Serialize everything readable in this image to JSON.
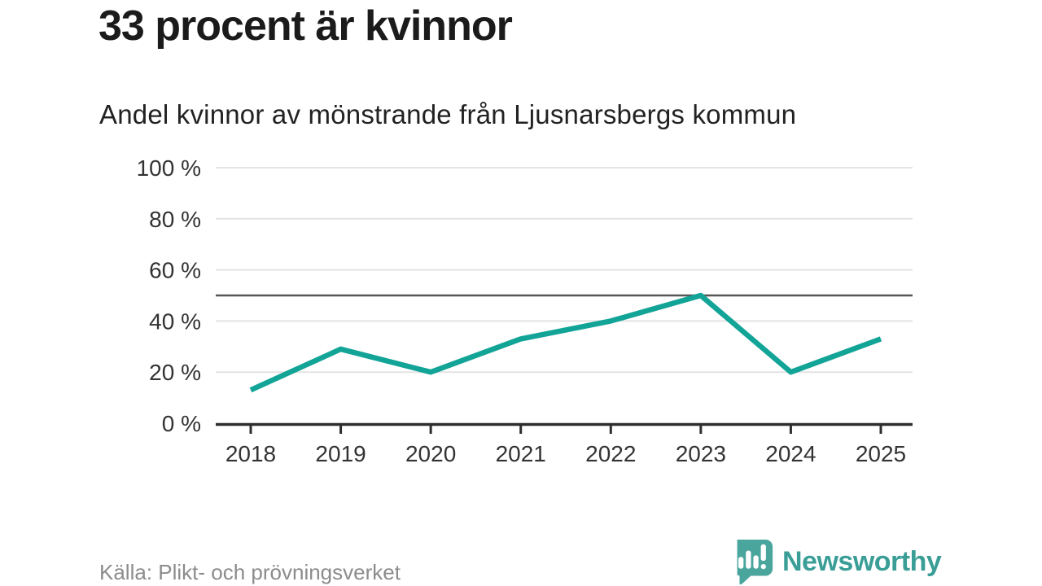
{
  "chart_data": {
    "type": "line",
    "title": "33 procent är kvinnor",
    "subtitle": "Andel kvinnor av mönstrande från Ljusnarsbergs kommun",
    "source": "Källa: Plikt- och prövningsverket",
    "x": [
      2018,
      2019,
      2020,
      2021,
      2022,
      2023,
      2024,
      2025
    ],
    "series": [
      {
        "name": "Andel kvinnor av mönstrande",
        "values": [
          13,
          29,
          20,
          33,
          40,
          50,
          20,
          33
        ]
      }
    ],
    "unit": "%",
    "ylim": [
      0,
      100
    ],
    "yticks": [
      0,
      20,
      40,
      60,
      80,
      100
    ],
    "ytick_suffix": " %",
    "reference_line": 50,
    "grid": true,
    "legend": false
  },
  "branding": {
    "wordmark": "Newsworthy",
    "logo_icon": "newsworthy-speech-bubble-bar-chart-icon"
  },
  "colors": {
    "line": "#12a497",
    "grid": "#e3e3e3",
    "reference": "#555555",
    "axis": "#2e2e2e",
    "tick_text": "#333333",
    "title_text": "#1b1b1b",
    "muted_text": "#8c8c8c",
    "brand": "#3a9e97",
    "logo_bubble": "#4aa59d"
  }
}
